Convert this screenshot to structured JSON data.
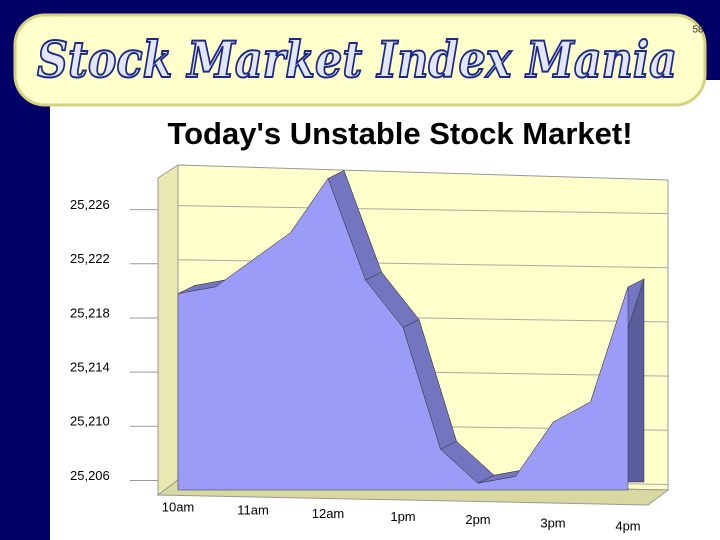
{
  "slide": {
    "header": "Stock Market Index Mania",
    "page_number": 58
  },
  "chart_data": {
    "type": "area",
    "title": "Today's Unstable Stock Market!",
    "categories": [
      "10am",
      null,
      "11am",
      null,
      "12am",
      null,
      "1pm",
      null,
      "2pm",
      null,
      "3pm",
      null,
      "4pm"
    ],
    "values": [
      25219.5,
      25220,
      25222,
      25224,
      25228,
      25220.5,
      25217,
      25208,
      25205.5,
      25206,
      25210,
      25211.5,
      25220
    ],
    "color": "#9a9cf8",
    "ylim": [
      25205,
      25229
    ],
    "yticks": [
      {
        "value": 25206,
        "label": "25,206"
      },
      {
        "value": 25210,
        "label": "25,210"
      },
      {
        "value": 25214,
        "label": "25,214"
      },
      {
        "value": 25218,
        "label": "25,218"
      },
      {
        "value": 25222,
        "label": "25,222"
      },
      {
        "value": 25226,
        "label": "25,226"
      }
    ],
    "grid": true
  }
}
